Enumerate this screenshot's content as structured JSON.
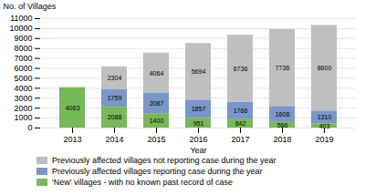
{
  "chart_data": {
    "type": "bar",
    "stacked": true,
    "xlabel": "Year",
    "ylabel": "No. of Villages",
    "categories": [
      "2013",
      "2014",
      "2015",
      "2016",
      "2017",
      "2018",
      "2019"
    ],
    "series": [
      {
        "name": "'New' villages - with no known past record of case",
        "color": "#77b85a",
        "values": [
          4063,
          2088,
          1400,
          951,
          842,
          566,
          403
        ]
      },
      {
        "name": "Previously affected villages reporting case during the year",
        "color": "#7b96c8",
        "values": [
          0,
          1759,
          2087,
          1857,
          1766,
          1608,
          1310
        ]
      },
      {
        "name": "Previously affected villages not reporting case during the year",
        "color": "#bfbfbf",
        "values": [
          0,
          2304,
          4064,
          5694,
          6736,
          7736,
          8600
        ]
      }
    ],
    "ylim": [
      0,
      11000
    ],
    "yticks": [
      0,
      1000,
      2000,
      3000,
      4000,
      5000,
      6000,
      7000,
      8000,
      9000,
      10000,
      11000
    ],
    "grid": true,
    "data_labels": true,
    "legend": "bottom"
  }
}
